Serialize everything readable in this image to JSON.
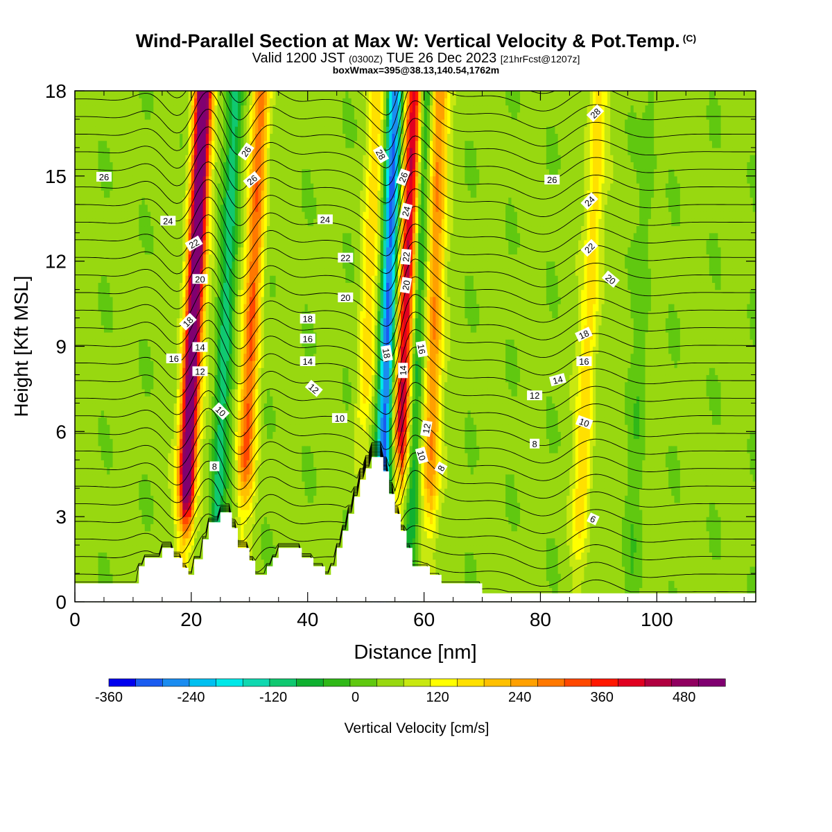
{
  "header": {
    "title": "Wind-Parallel Section at Max W: Vertical Velocity & Pot.Temp.",
    "copyright": "(C)",
    "valid_prefix": "Valid 1200 JST",
    "valid_utc": "(0300Z)",
    "valid_date": "TUE 26 Dec 2023",
    "forecast": "[21hrFcst@1207z]",
    "box_info": "boxWmax=395@38.13,140.54,1762m"
  },
  "chart_data": {
    "type": "heatmap",
    "xlabel": "Distance [nm]",
    "ylabel": "Height [Kft MSL]",
    "xlim": [
      0,
      117
    ],
    "ylim": [
      0,
      18
    ],
    "x_ticks": [
      0,
      20,
      40,
      60,
      80,
      100
    ],
    "y_ticks": [
      0,
      3,
      6,
      9,
      12,
      15,
      18
    ],
    "colorbar": {
      "label": "Vertical Velocity [cm/s]",
      "min": -360,
      "max": 540,
      "step": 40,
      "tick_values": [
        -360,
        -240,
        -120,
        0,
        120,
        240,
        360,
        480
      ],
      "colors": [
        "#0000ee",
        "#1a5cf0",
        "#1a8cf0",
        "#00c0f0",
        "#00e8e8",
        "#10d8b0",
        "#10c870",
        "#10b030",
        "#30b818",
        "#60c810",
        "#98d810",
        "#c8e810",
        "#ffff00",
        "#ffe000",
        "#ffc000",
        "#ffa000",
        "#ff7800",
        "#ff4800",
        "#ff1800",
        "#e00020",
        "#b00040",
        "#900060",
        "#800070"
      ]
    },
    "updraft_bands": [
      {
        "x": 20,
        "w": 560
      },
      {
        "x": 30,
        "w": 260
      },
      {
        "x": 50,
        "w": 120
      },
      {
        "x": 56.5,
        "w": 395
      },
      {
        "x": 61.5,
        "w": 230
      },
      {
        "x": 88,
        "w": 140
      }
    ],
    "downdraft_bands": [
      {
        "x": 25.5,
        "w": -150
      },
      {
        "x": 53.5,
        "w": -340
      },
      {
        "x": 58.5,
        "w": -150
      },
      {
        "x": 97,
        "w": -40
      }
    ],
    "terrain": [
      {
        "x": 0,
        "h": 0.65
      },
      {
        "x": 11,
        "h": 0.65
      },
      {
        "x": 11,
        "h": 1.25
      },
      {
        "x": 12,
        "h": 1.25
      },
      {
        "x": 12,
        "h": 1.55
      },
      {
        "x": 15,
        "h": 1.55
      },
      {
        "x": 15,
        "h": 1.9
      },
      {
        "x": 17,
        "h": 1.9
      },
      {
        "x": 17,
        "h": 1.55
      },
      {
        "x": 18.5,
        "h": 1.55
      },
      {
        "x": 18.5,
        "h": 1.2
      },
      {
        "x": 19.5,
        "h": 1.2
      },
      {
        "x": 19.5,
        "h": 0.95
      },
      {
        "x": 20.5,
        "h": 0.95
      },
      {
        "x": 20.5,
        "h": 1.5
      },
      {
        "x": 22,
        "h": 1.5
      },
      {
        "x": 22,
        "h": 2.2
      },
      {
        "x": 23,
        "h": 2.2
      },
      {
        "x": 23,
        "h": 2.8
      },
      {
        "x": 25,
        "h": 2.8
      },
      {
        "x": 25,
        "h": 3.15
      },
      {
        "x": 27,
        "h": 3.15
      },
      {
        "x": 27,
        "h": 2.6
      },
      {
        "x": 28,
        "h": 2.6
      },
      {
        "x": 28,
        "h": 1.9
      },
      {
        "x": 30,
        "h": 1.9
      },
      {
        "x": 30,
        "h": 1.45
      },
      {
        "x": 31,
        "h": 1.45
      },
      {
        "x": 31,
        "h": 0.95
      },
      {
        "x": 33,
        "h": 0.95
      },
      {
        "x": 33,
        "h": 1.25
      },
      {
        "x": 34,
        "h": 1.25
      },
      {
        "x": 34,
        "h": 1.55
      },
      {
        "x": 35,
        "h": 1.55
      },
      {
        "x": 35,
        "h": 1.9
      },
      {
        "x": 39,
        "h": 1.9
      },
      {
        "x": 39,
        "h": 1.55
      },
      {
        "x": 41,
        "h": 1.55
      },
      {
        "x": 41,
        "h": 1.25
      },
      {
        "x": 43,
        "h": 1.25
      },
      {
        "x": 43,
        "h": 0.95
      },
      {
        "x": 44,
        "h": 0.95
      },
      {
        "x": 44,
        "h": 1.25
      },
      {
        "x": 45,
        "h": 1.25
      },
      {
        "x": 45,
        "h": 1.9
      },
      {
        "x": 46,
        "h": 1.9
      },
      {
        "x": 46,
        "h": 2.5
      },
      {
        "x": 47,
        "h": 2.5
      },
      {
        "x": 47,
        "h": 3.1
      },
      {
        "x": 48,
        "h": 3.1
      },
      {
        "x": 48,
        "h": 3.7
      },
      {
        "x": 49,
        "h": 3.7
      },
      {
        "x": 49,
        "h": 4.3
      },
      {
        "x": 50,
        "h": 4.3
      },
      {
        "x": 50,
        "h": 4.7
      },
      {
        "x": 51,
        "h": 4.7
      },
      {
        "x": 51,
        "h": 5.1
      },
      {
        "x": 53,
        "h": 5.1
      },
      {
        "x": 53,
        "h": 4.6
      },
      {
        "x": 54,
        "h": 4.6
      },
      {
        "x": 54,
        "h": 3.8
      },
      {
        "x": 55,
        "h": 3.8
      },
      {
        "x": 55,
        "h": 3.1
      },
      {
        "x": 56,
        "h": 3.1
      },
      {
        "x": 56,
        "h": 2.5
      },
      {
        "x": 57,
        "h": 2.5
      },
      {
        "x": 57,
        "h": 1.9
      },
      {
        "x": 58,
        "h": 1.9
      },
      {
        "x": 58,
        "h": 1.25
      },
      {
        "x": 61,
        "h": 1.25
      },
      {
        "x": 61,
        "h": 0.95
      },
      {
        "x": 63,
        "h": 0.95
      },
      {
        "x": 63,
        "h": 0.65
      },
      {
        "x": 70,
        "h": 0.65
      },
      {
        "x": 70,
        "h": 0.3
      },
      {
        "x": 117,
        "h": 0.3
      }
    ],
    "isentrope_labels": [
      {
        "text": "26",
        "x": 5,
        "y": 14.95,
        "rot": 0
      },
      {
        "text": "24",
        "x": 16,
        "y": 13.4,
        "rot": 0
      },
      {
        "text": "22",
        "x": 20.5,
        "y": 12.6,
        "rot": -30
      },
      {
        "text": "20",
        "x": 21.5,
        "y": 11.35,
        "rot": 0
      },
      {
        "text": "18",
        "x": 19.5,
        "y": 9.85,
        "rot": -45
      },
      {
        "text": "16",
        "x": 17,
        "y": 8.55,
        "rot": 0
      },
      {
        "text": "14",
        "x": 21.5,
        "y": 8.95,
        "rot": 0
      },
      {
        "text": "12",
        "x": 21.5,
        "y": 8.1,
        "rot": 0
      },
      {
        "text": "10",
        "x": 25,
        "y": 6.7,
        "rot": 45
      },
      {
        "text": "8",
        "x": 24,
        "y": 4.75,
        "rot": 0
      },
      {
        "text": "26",
        "x": 29.5,
        "y": 15.85,
        "rot": -55
      },
      {
        "text": "26",
        "x": 30.5,
        "y": 14.85,
        "rot": -40
      },
      {
        "text": "24",
        "x": 43,
        "y": 13.45,
        "rot": 0
      },
      {
        "text": "22",
        "x": 46.5,
        "y": 12.1,
        "rot": 0
      },
      {
        "text": "20",
        "x": 46.5,
        "y": 10.7,
        "rot": 0
      },
      {
        "text": "18",
        "x": 40,
        "y": 9.95,
        "rot": 0
      },
      {
        "text": "16",
        "x": 40,
        "y": 9.25,
        "rot": 0
      },
      {
        "text": "14",
        "x": 40,
        "y": 8.45,
        "rot": 0
      },
      {
        "text": "12",
        "x": 41,
        "y": 7.5,
        "rot": 40
      },
      {
        "text": "10",
        "x": 45.5,
        "y": 6.45,
        "rot": 0
      },
      {
        "text": "28",
        "x": 52.5,
        "y": 15.75,
        "rot": 60
      },
      {
        "text": "26",
        "x": 56.5,
        "y": 14.95,
        "rot": -70
      },
      {
        "text": "24",
        "x": 57,
        "y": 13.75,
        "rot": -75
      },
      {
        "text": "22",
        "x": 57,
        "y": 12.15,
        "rot": -85
      },
      {
        "text": "20",
        "x": 57,
        "y": 11.15,
        "rot": -80
      },
      {
        "text": "18",
        "x": 53.5,
        "y": 8.75,
        "rot": 80
      },
      {
        "text": "16",
        "x": 59.5,
        "y": 8.9,
        "rot": 80
      },
      {
        "text": "14",
        "x": 56.5,
        "y": 8.15,
        "rot": -90
      },
      {
        "text": "12",
        "x": 60.5,
        "y": 6.1,
        "rot": -80
      },
      {
        "text": "10",
        "x": 59.5,
        "y": 5.15,
        "rot": 75
      },
      {
        "text": "8",
        "x": 63,
        "y": 4.7,
        "rot": -60
      },
      {
        "text": "28",
        "x": 89.5,
        "y": 17.2,
        "rot": -45
      },
      {
        "text": "26",
        "x": 82,
        "y": 14.85,
        "rot": 0
      },
      {
        "text": "24",
        "x": 88.5,
        "y": 14.1,
        "rot": -45
      },
      {
        "text": "22",
        "x": 88.5,
        "y": 12.45,
        "rot": -45
      },
      {
        "text": "20",
        "x": 92,
        "y": 11.35,
        "rot": 40
      },
      {
        "text": "18",
        "x": 87.5,
        "y": 9.4,
        "rot": -25
      },
      {
        "text": "16",
        "x": 87.5,
        "y": 8.45,
        "rot": 0
      },
      {
        "text": "14",
        "x": 83,
        "y": 7.8,
        "rot": -15
      },
      {
        "text": "12",
        "x": 79,
        "y": 7.25,
        "rot": 0
      },
      {
        "text": "10",
        "x": 87.5,
        "y": 6.3,
        "rot": 20
      },
      {
        "text": "8",
        "x": 79,
        "y": 5.55,
        "rot": 0
      },
      {
        "text": "6",
        "x": 89,
        "y": 2.9,
        "rot": 25
      }
    ]
  }
}
